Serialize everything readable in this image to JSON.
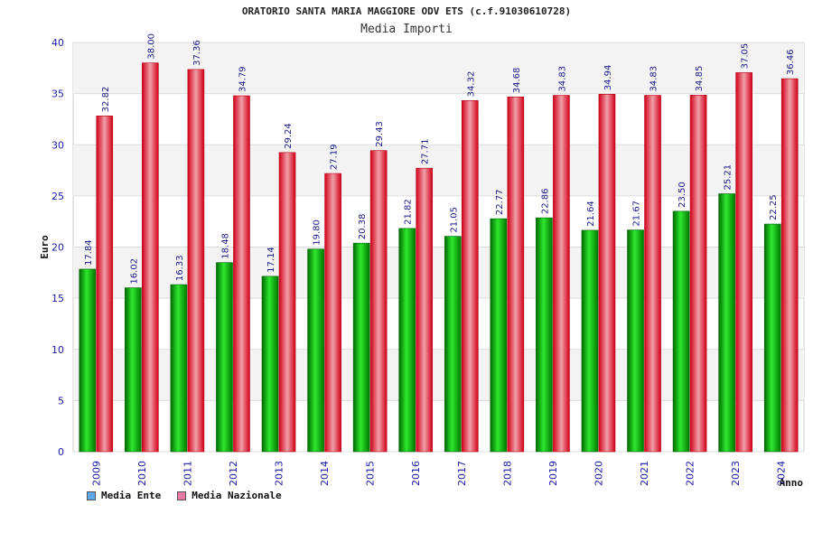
{
  "chart_data": {
    "type": "bar",
    "title": "ORATORIO SANTA MARIA MAGGIORE ODV ETS (c.f.91030610728)",
    "subtitle": "Media Importi",
    "xlabel": "Anno",
    "ylabel": "Euro",
    "ylim": [
      0,
      40
    ],
    "yticks": [
      0,
      5,
      10,
      15,
      20,
      25,
      30,
      35,
      40
    ],
    "categories": [
      "2009",
      "2010",
      "2011",
      "2012",
      "2013",
      "2014",
      "2015",
      "2016",
      "2017",
      "2018",
      "2019",
      "2020",
      "2021",
      "2022",
      "2023",
      "2024"
    ],
    "series": [
      {
        "name": "Media Ente",
        "color": "#00a000",
        "values": [
          17.84,
          16.02,
          16.33,
          18.48,
          17.14,
          19.8,
          20.38,
          21.82,
          21.05,
          22.77,
          22.86,
          21.64,
          21.67,
          23.5,
          25.21,
          22.25
        ],
        "labels": [
          "17.84",
          "16.02",
          "16.33",
          "18.48",
          "17.14",
          "19.80",
          "20.38",
          "21.82",
          "21.05",
          "22.77",
          "22.86",
          "21.64",
          "21.67",
          "23.50",
          "25.21",
          "22.25"
        ]
      },
      {
        "name": "Media Nazionale",
        "color": "#e8182a",
        "values": [
          32.82,
          38.0,
          37.36,
          34.79,
          29.24,
          27.19,
          29.43,
          27.71,
          34.32,
          34.68,
          34.83,
          34.94,
          34.83,
          34.85,
          37.05,
          36.46
        ],
        "labels": [
          "32.82",
          "38.00",
          "37.36",
          "34.79",
          "29.24",
          "27.19",
          "29.43",
          "27.71",
          "34.32",
          "34.68",
          "34.83",
          "34.94",
          "34.83",
          "34.85",
          "37.05",
          "36.46"
        ]
      }
    ],
    "legend": [
      {
        "label": "Media Ente",
        "color": "#5fa8e8"
      },
      {
        "label": "Media Nazionale",
        "color": "#e87aa8"
      }
    ],
    "legend_position": "bottom-left",
    "grid": true
  }
}
